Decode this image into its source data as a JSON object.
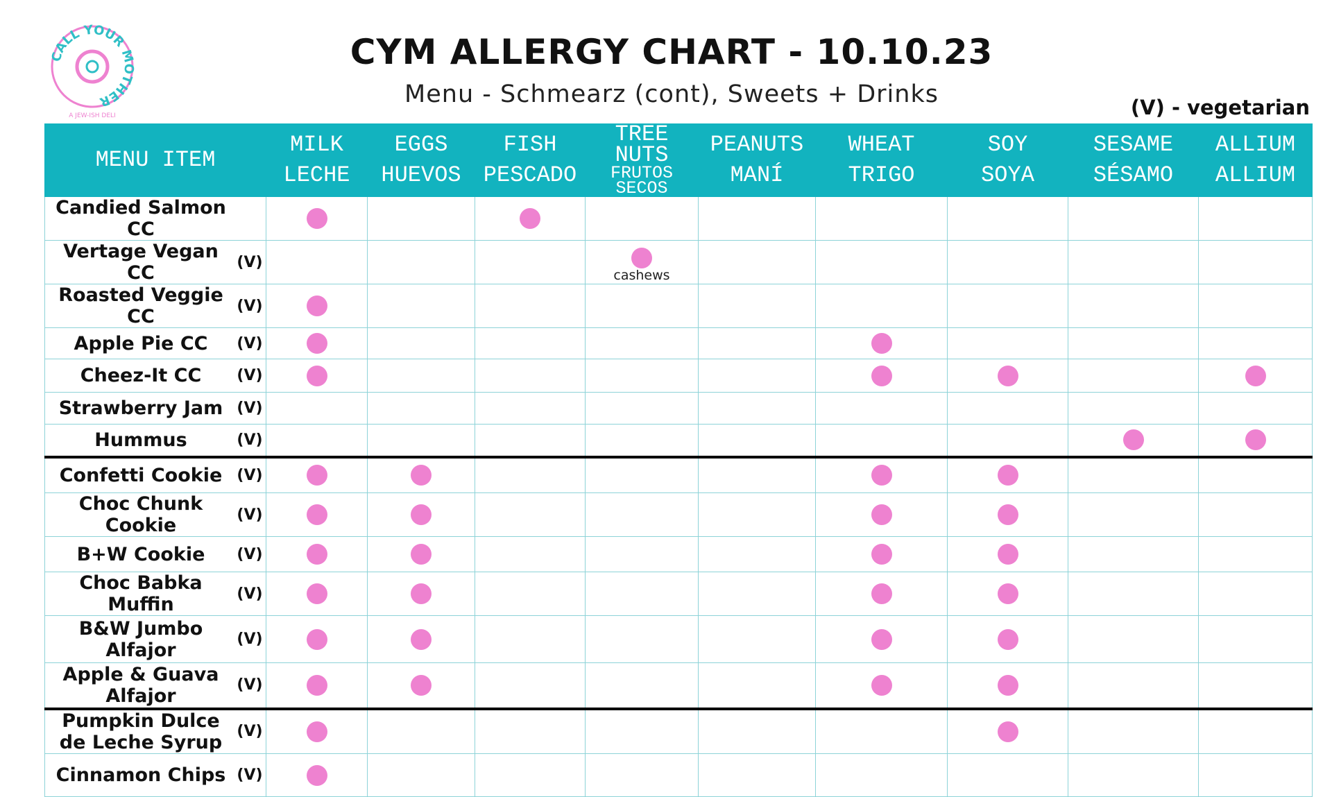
{
  "logo": {
    "name": "CALL YOUR MOTHER",
    "tagline": "A JEW-ISH DELI"
  },
  "header": {
    "title": "CYM ALLERGY CHART - 10.10.23",
    "subtitle": "Menu - Schmearz (cont), Sweets + Drinks",
    "legend": "(V) - vegetarian"
  },
  "table": {
    "item_header": "MENU ITEM",
    "columns": [
      {
        "en": "MILK",
        "es": "LECHE"
      },
      {
        "en": "EGGS",
        "es": "HUEVOS"
      },
      {
        "en": "FISH",
        "es": "PESCADO"
      },
      {
        "en": "TREE NUTS",
        "es": "FRUTOS SECOS"
      },
      {
        "en": "PEANUTS",
        "es": "MANÍ"
      },
      {
        "en": "WHEAT",
        "es": "TRIGO"
      },
      {
        "en": "SOY",
        "es": "SOYA"
      },
      {
        "en": "SESAME",
        "es": "SÉSAMO"
      },
      {
        "en": "ALLIUM",
        "es": "ALLIUM"
      }
    ],
    "sections": [
      {
        "rows": [
          {
            "name": "Candied Salmon CC",
            "cells": [
              true,
              false,
              true,
              false,
              false,
              false,
              false,
              false,
              false
            ]
          },
          {
            "name": "Vertage Vegan CC",
            "veg": "(V)",
            "cells": [
              false,
              false,
              false,
              "cashews",
              false,
              false,
              false,
              false,
              false
            ]
          },
          {
            "name": "Roasted Veggie CC",
            "veg": "(V)",
            "cells": [
              true,
              false,
              false,
              false,
              false,
              false,
              false,
              false,
              false
            ]
          },
          {
            "name": "Apple Pie CC",
            "veg": "(V)",
            "cells": [
              true,
              false,
              false,
              false,
              false,
              true,
              false,
              false,
              false
            ]
          },
          {
            "name": "Cheez-It CC",
            "veg": "(V)",
            "cells": [
              true,
              false,
              false,
              false,
              false,
              true,
              true,
              false,
              true
            ]
          },
          {
            "name": "Strawberry Jam",
            "veg": "(V)",
            "cells": [
              false,
              false,
              false,
              false,
              false,
              false,
              false,
              false,
              false
            ]
          },
          {
            "name": "Hummus",
            "veg": "(V)",
            "cells": [
              false,
              false,
              false,
              false,
              false,
              false,
              false,
              true,
              true
            ]
          }
        ]
      },
      {
        "rows": [
          {
            "name": "Confetti Cookie",
            "veg": "(V)",
            "cells": [
              true,
              true,
              false,
              false,
              false,
              true,
              true,
              false,
              false
            ]
          },
          {
            "name": "Choc Chunk Cookie",
            "veg": "(V)",
            "cells": [
              true,
              true,
              false,
              false,
              false,
              true,
              true,
              false,
              false
            ]
          },
          {
            "name": "B+W Cookie",
            "veg": "(V)",
            "cells": [
              true,
              true,
              false,
              false,
              false,
              true,
              true,
              false,
              false
            ]
          },
          {
            "name": "Choc Babka Muffin",
            "veg": "(V)",
            "cells": [
              true,
              true,
              false,
              false,
              false,
              true,
              true,
              false,
              false
            ]
          },
          {
            "name": "B&W Jumbo Alfajor",
            "veg": "(V)",
            "cells": [
              true,
              true,
              false,
              false,
              false,
              true,
              true,
              false,
              false
            ]
          },
          {
            "name": "Apple & Guava Alfajor",
            "veg": "(V)",
            "cells": [
              true,
              true,
              false,
              false,
              false,
              true,
              true,
              false,
              false
            ]
          }
        ]
      },
      {
        "rows": [
          {
            "name": "Pumpkin Dulce de Leche Syrup",
            "veg": "(V)",
            "cells": [
              true,
              false,
              false,
              false,
              false,
              false,
              true,
              false,
              false
            ]
          },
          {
            "name": "Cinnamon Chips",
            "veg": "(V)",
            "cells": [
              true,
              false,
              false,
              false,
              false,
              false,
              false,
              false,
              false
            ]
          }
        ]
      }
    ]
  }
}
